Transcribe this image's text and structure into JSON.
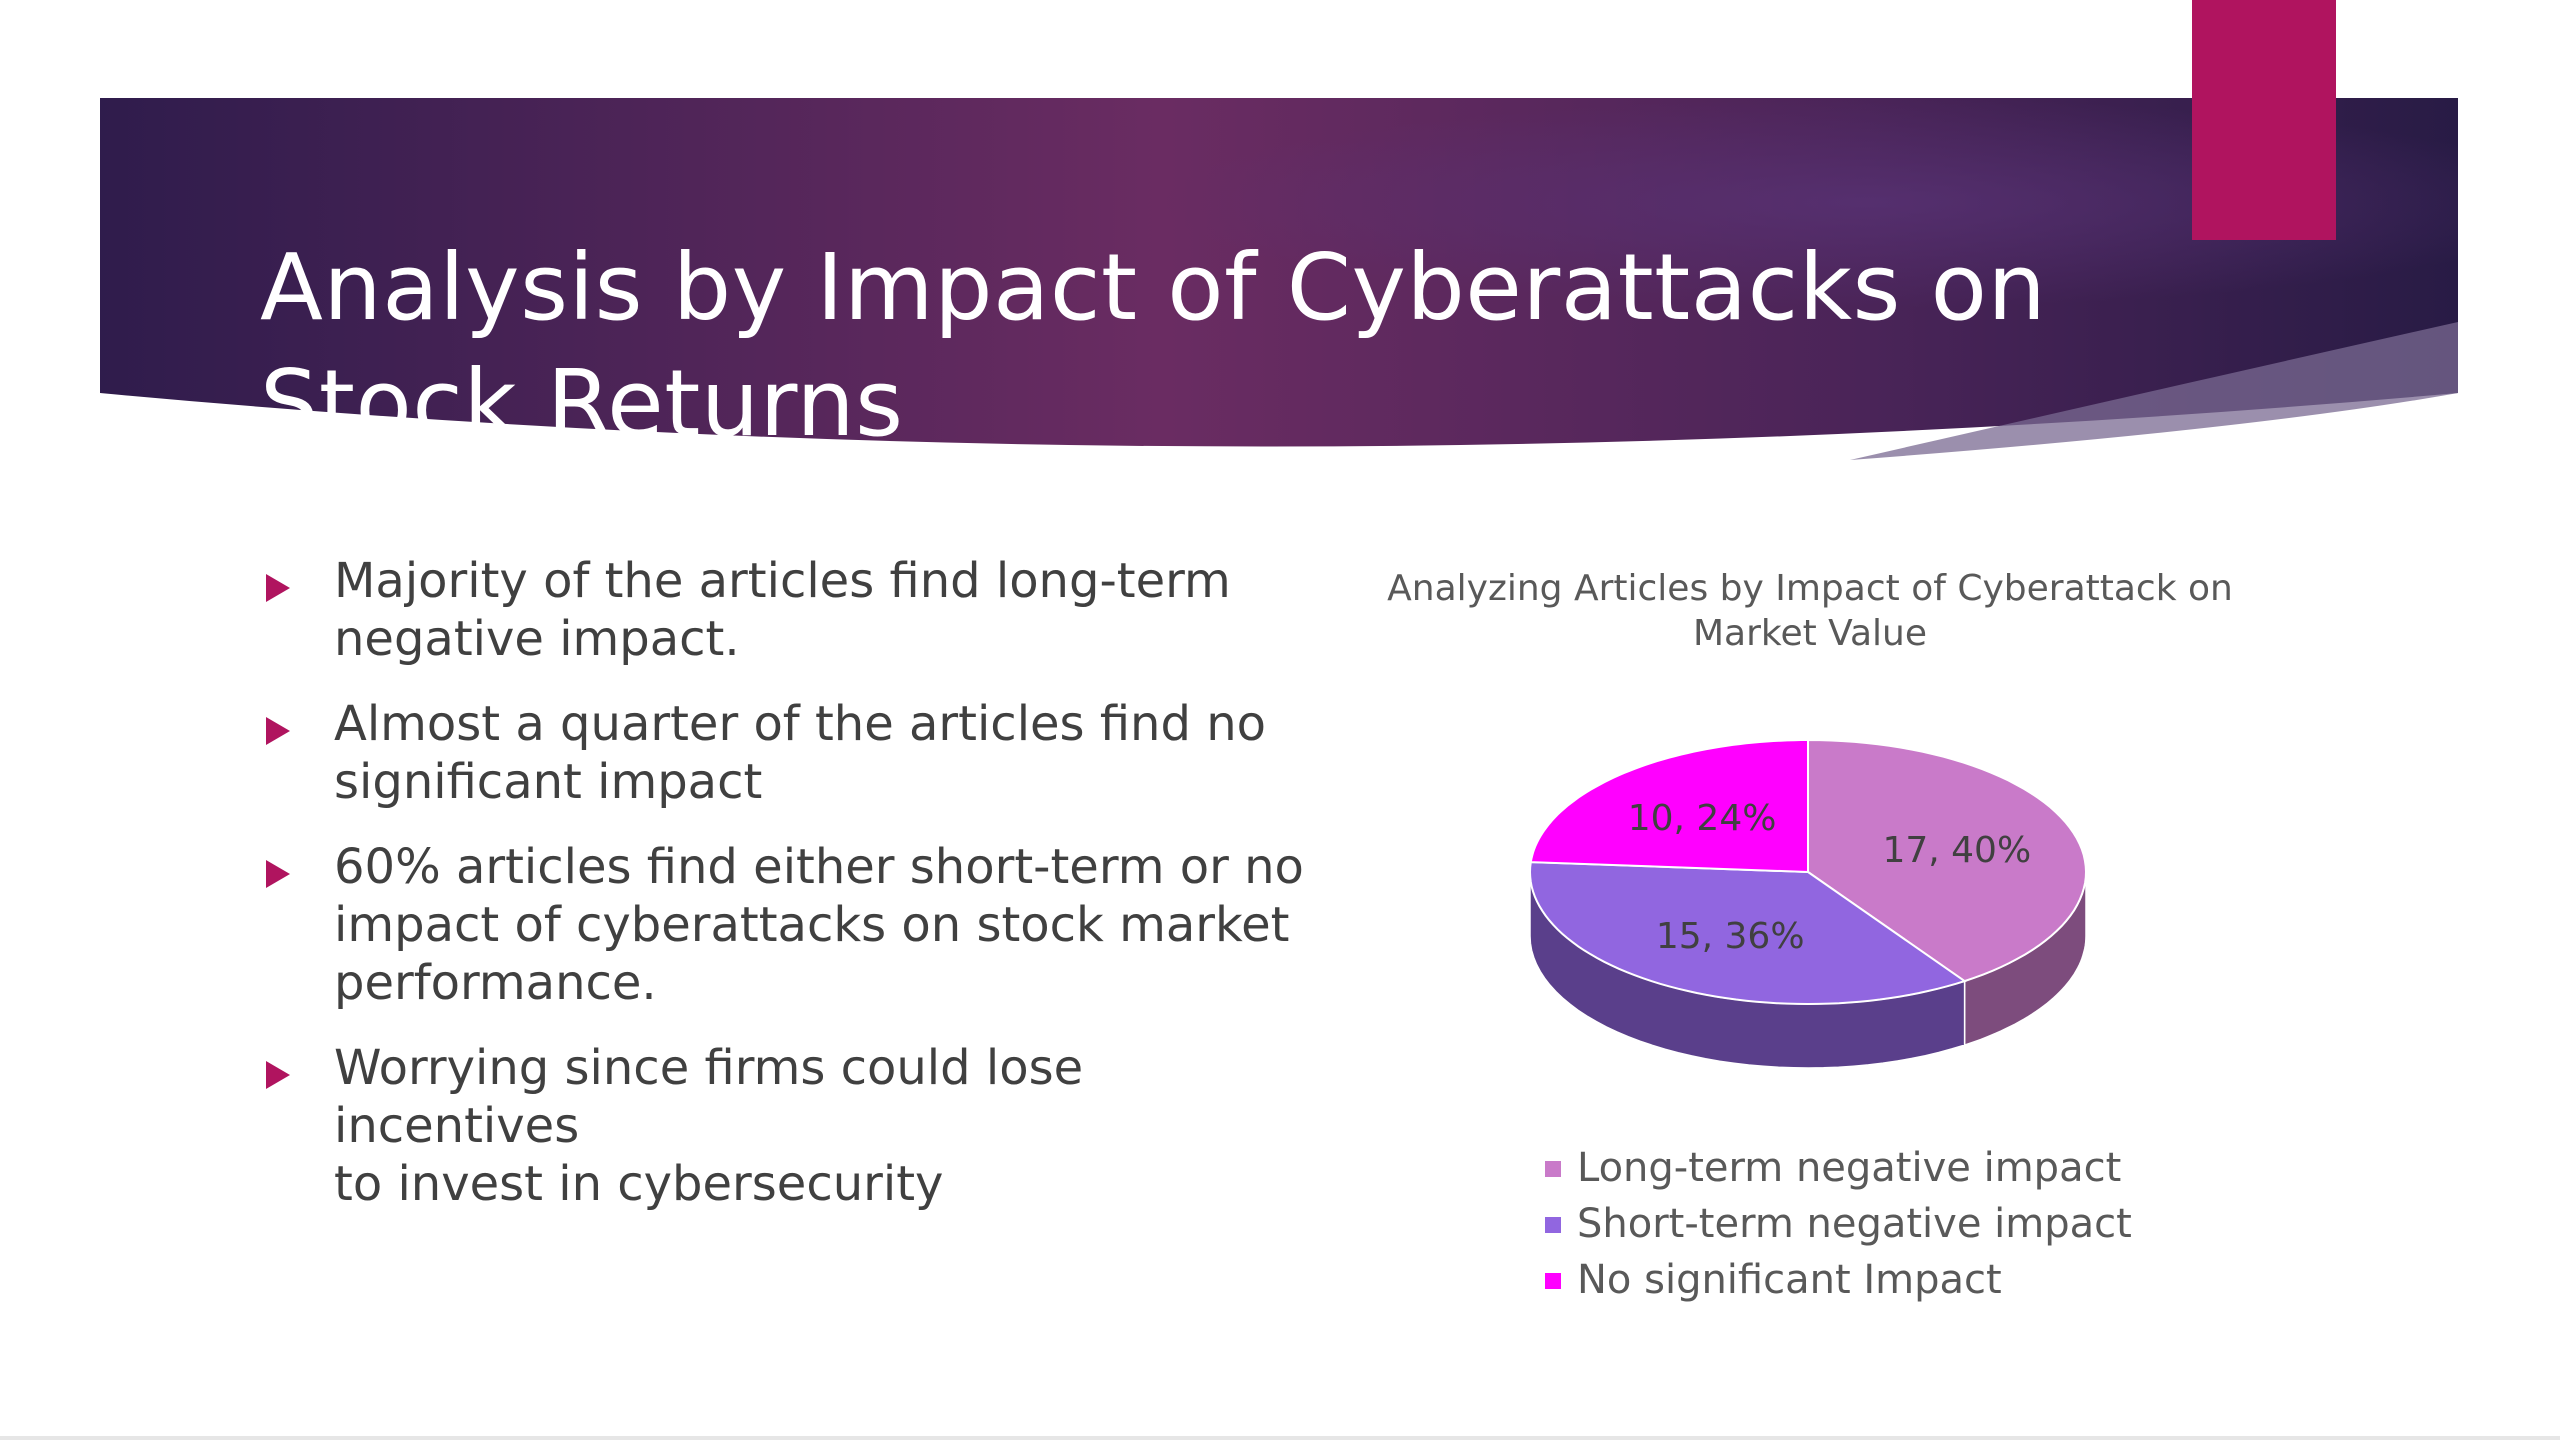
{
  "slide": {
    "title_lines": [
      "Analysis by Impact of Cyberattacks on",
      "Stock Returns"
    ],
    "bullets": [
      {
        "lines": [
          "Majority of the articles find long-term",
          "negative impact."
        ]
      },
      {
        "lines": [
          "Almost a quarter of the articles find no",
          "significant impact"
        ]
      },
      {
        "lines": [
          "60% articles find either short-term or no",
          "impact of cyberattacks on stock market",
          "performance."
        ]
      },
      {
        "lines": [
          "Worrying since firms could lose incentives",
          "to invest in cybersecurity"
        ]
      }
    ],
    "colors": {
      "accent": "#b0145f",
      "banner_dark": "#2f1c4c",
      "banner_mid": "#6a2c62"
    }
  },
  "chart_data": {
    "type": "pie",
    "style": "3d",
    "title_lines": [
      "Analyzing Articles by Impact of Cyberattack on",
      "Market Value"
    ],
    "slices": [
      {
        "name": "Long-term negative impact",
        "value": 17,
        "percent": 40,
        "label": "17, 40%",
        "color": "#c97ac9"
      },
      {
        "name": "Short-term negative impact",
        "value": 15,
        "percent": 36,
        "label": "15, 36%",
        "color": "#9166e0"
      },
      {
        "name": "No significant Impact",
        "value": 10,
        "percent": 24,
        "label": "10, 24%",
        "color": "#ff00ff"
      }
    ],
    "legend_position": "bottom"
  }
}
